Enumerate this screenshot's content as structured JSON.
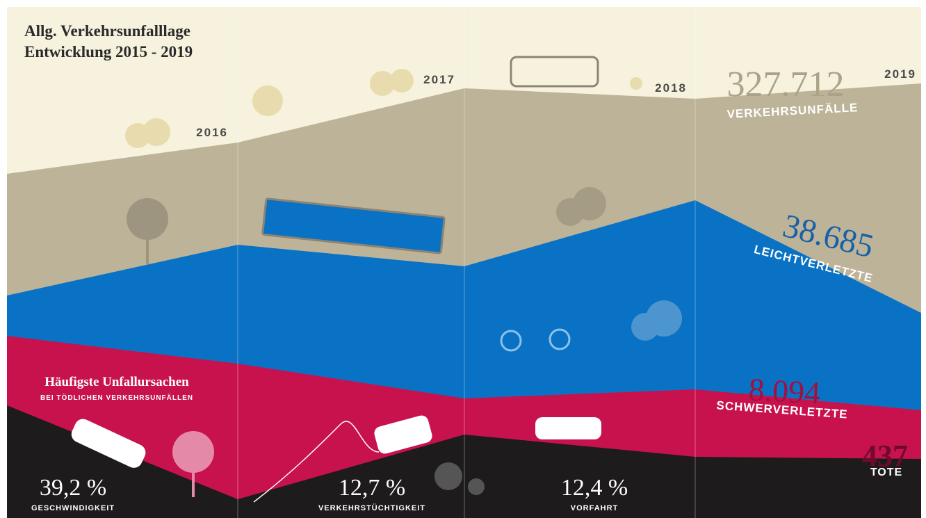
{
  "header": {
    "title": [
      "Allg. Verkehrsunfalllage",
      "Entwicklung 2015 - 2019"
    ]
  },
  "years": [
    "2016",
    "2017",
    "2018",
    "2019"
  ],
  "totals": [
    {
      "value": "327.712",
      "label": "VERKEHRSUNFÄLLE"
    },
    {
      "value": "38.685",
      "label": "LEICHTVERLETZTE"
    },
    {
      "value": "8.094",
      "label": "SCHWERVERLETZTE"
    },
    {
      "value": "437",
      "label": "TOTE"
    }
  ],
  "causes": {
    "heading": "Häufigste Unfallursachen",
    "subheading": "BEI TÖDLICHEN VERKEHRSUNFÄLLEN",
    "items": [
      {
        "value": "39,2 %",
        "label": "GESCHWINDIGKEIT"
      },
      {
        "value": "12,7 %",
        "label": "VERKEHRSTÜCHTIGKEIT"
      },
      {
        "value": "12,4 %",
        "label": "VORFAHRT"
      }
    ]
  }
}
